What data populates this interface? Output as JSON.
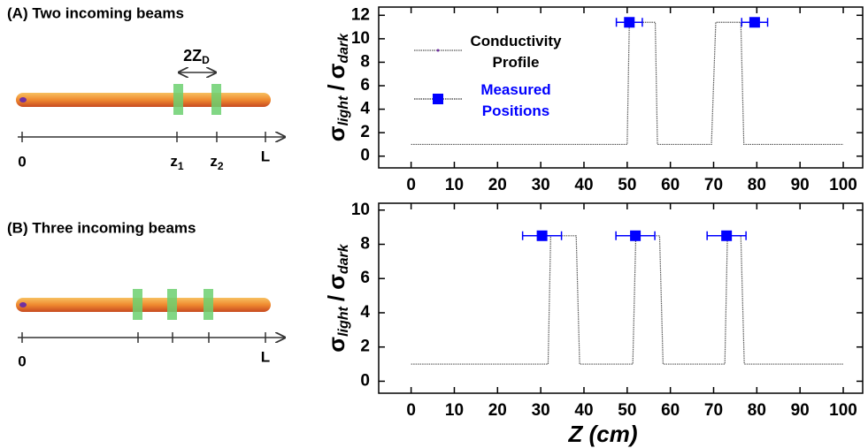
{
  "diagrams": [
    {
      "title": "(A) Two incoming beams",
      "width_label": {
        "main": "2Z",
        "sub": "D"
      },
      "axis_labels": [
        "0",
        {
          "main": "z",
          "sub": "1"
        },
        {
          "main": "z",
          "sub": "2"
        },
        "L"
      ]
    },
    {
      "title": "(B) Three incoming beams",
      "axis_labels": [
        "0",
        "L"
      ]
    }
  ],
  "chart_data": [
    {
      "type": "line",
      "ylabel": {
        "numerator": "σ",
        "numerator_sub": "light",
        "separator": "/",
        "denominator": "σ",
        "denominator_sub": "dark"
      },
      "xlim": [
        -7.5,
        104.5
      ],
      "xticks": [
        0,
        10,
        20,
        30,
        40,
        50,
        60,
        70,
        80,
        90,
        100
      ],
      "ylim": [
        -1,
        12.7
      ],
      "yticks": [
        0,
        2,
        4,
        6,
        8,
        10,
        12
      ],
      "legend": true,
      "series": [
        {
          "name": "Conductivity Profile",
          "color": "#555555",
          "x": [
            0,
            50,
            50.5,
            56.5,
            57,
            69.5,
            70.5,
            76.3,
            77,
            100
          ],
          "values": [
            1,
            1,
            11.4,
            11.4,
            1,
            1,
            11.4,
            11.4,
            1,
            1
          ]
        },
        {
          "name": "Measured Positions",
          "color": "#0000ff",
          "marker": "square",
          "x": [
            50.5,
            79.5
          ],
          "values": [
            11.4,
            11.4
          ],
          "xerr": [
            3,
            3
          ]
        }
      ]
    },
    {
      "type": "line",
      "ylabel": {
        "numerator": "σ",
        "numerator_sub": "light",
        "separator": "/",
        "denominator": "σ",
        "denominator_sub": "dark"
      },
      "xlabel": "Z (cm)",
      "xlim": [
        -7.5,
        104.5
      ],
      "xticks": [
        0,
        10,
        20,
        30,
        40,
        50,
        60,
        70,
        80,
        90,
        100
      ],
      "ylim": [
        -0.7,
        10.4
      ],
      "yticks": [
        0,
        2,
        4,
        6,
        8,
        10
      ],
      "legend": false,
      "series": [
        {
          "name": "Conductivity Profile",
          "color": "#555555",
          "x": [
            0,
            31.7,
            32.3,
            38.2,
            39,
            51.3,
            52,
            57.5,
            58.3,
            72.6,
            73.2,
            76.3,
            77.1,
            100
          ],
          "values": [
            1,
            1,
            8.5,
            8.5,
            1,
            1,
            8.5,
            8.5,
            1,
            1,
            8.5,
            8.5,
            1,
            1
          ]
        },
        {
          "name": "Measured Positions",
          "color": "#0000ff",
          "marker": "square",
          "x": [
            30.3,
            51.9,
            73
          ],
          "values": [
            8.5,
            8.5,
            8.5
          ],
          "xerr": [
            4.5,
            4.5,
            4.5
          ]
        }
      ]
    }
  ]
}
